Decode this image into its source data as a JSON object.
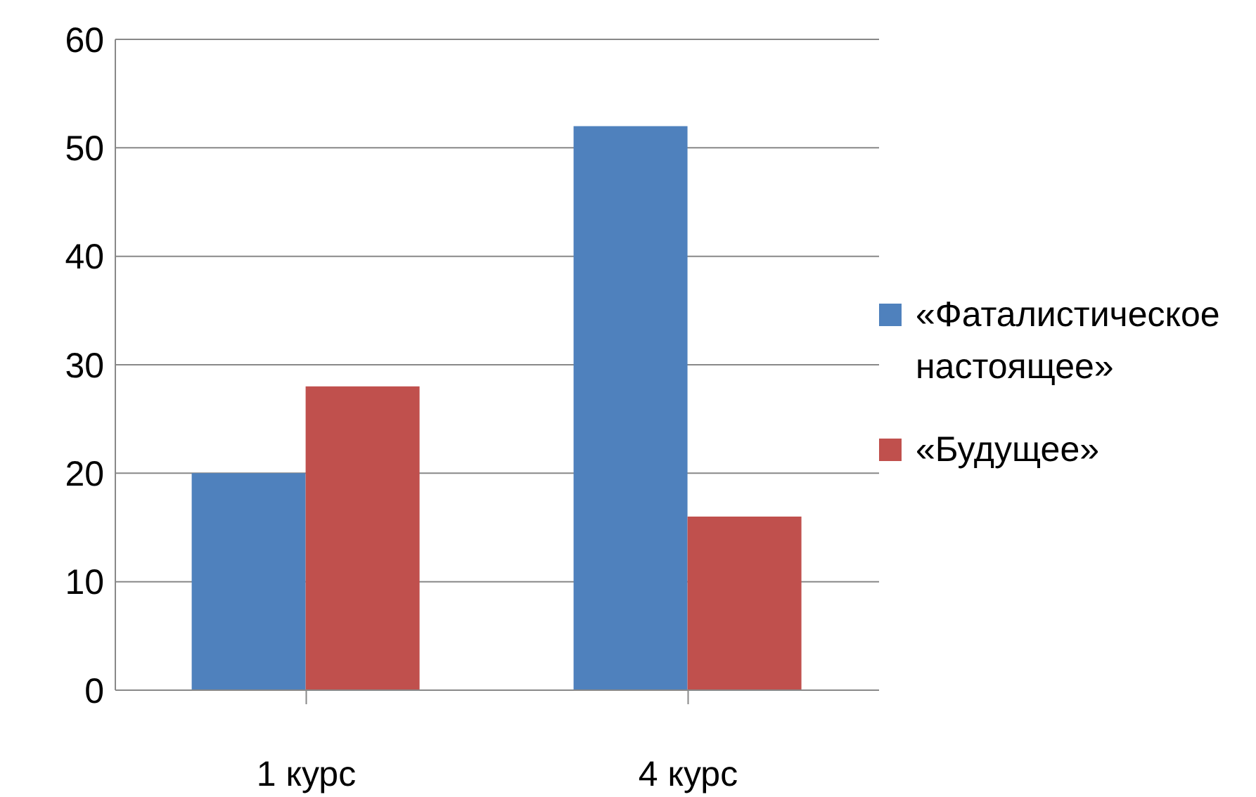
{
  "chart_data": {
    "type": "bar",
    "categories": [
      "1 курс",
      "4 курс"
    ],
    "series": [
      {
        "name": "«Фаталистическое настоящее»",
        "color": "#4f81bd",
        "values": [
          20,
          52
        ]
      },
      {
        "name": "«Будущее»",
        "color": "#c0504d",
        "values": [
          28,
          16
        ]
      }
    ],
    "ylim": [
      0,
      60
    ],
    "yticks": [
      0,
      10,
      20,
      30,
      40,
      50,
      60
    ],
    "grid": "y",
    "legend": "right"
  }
}
